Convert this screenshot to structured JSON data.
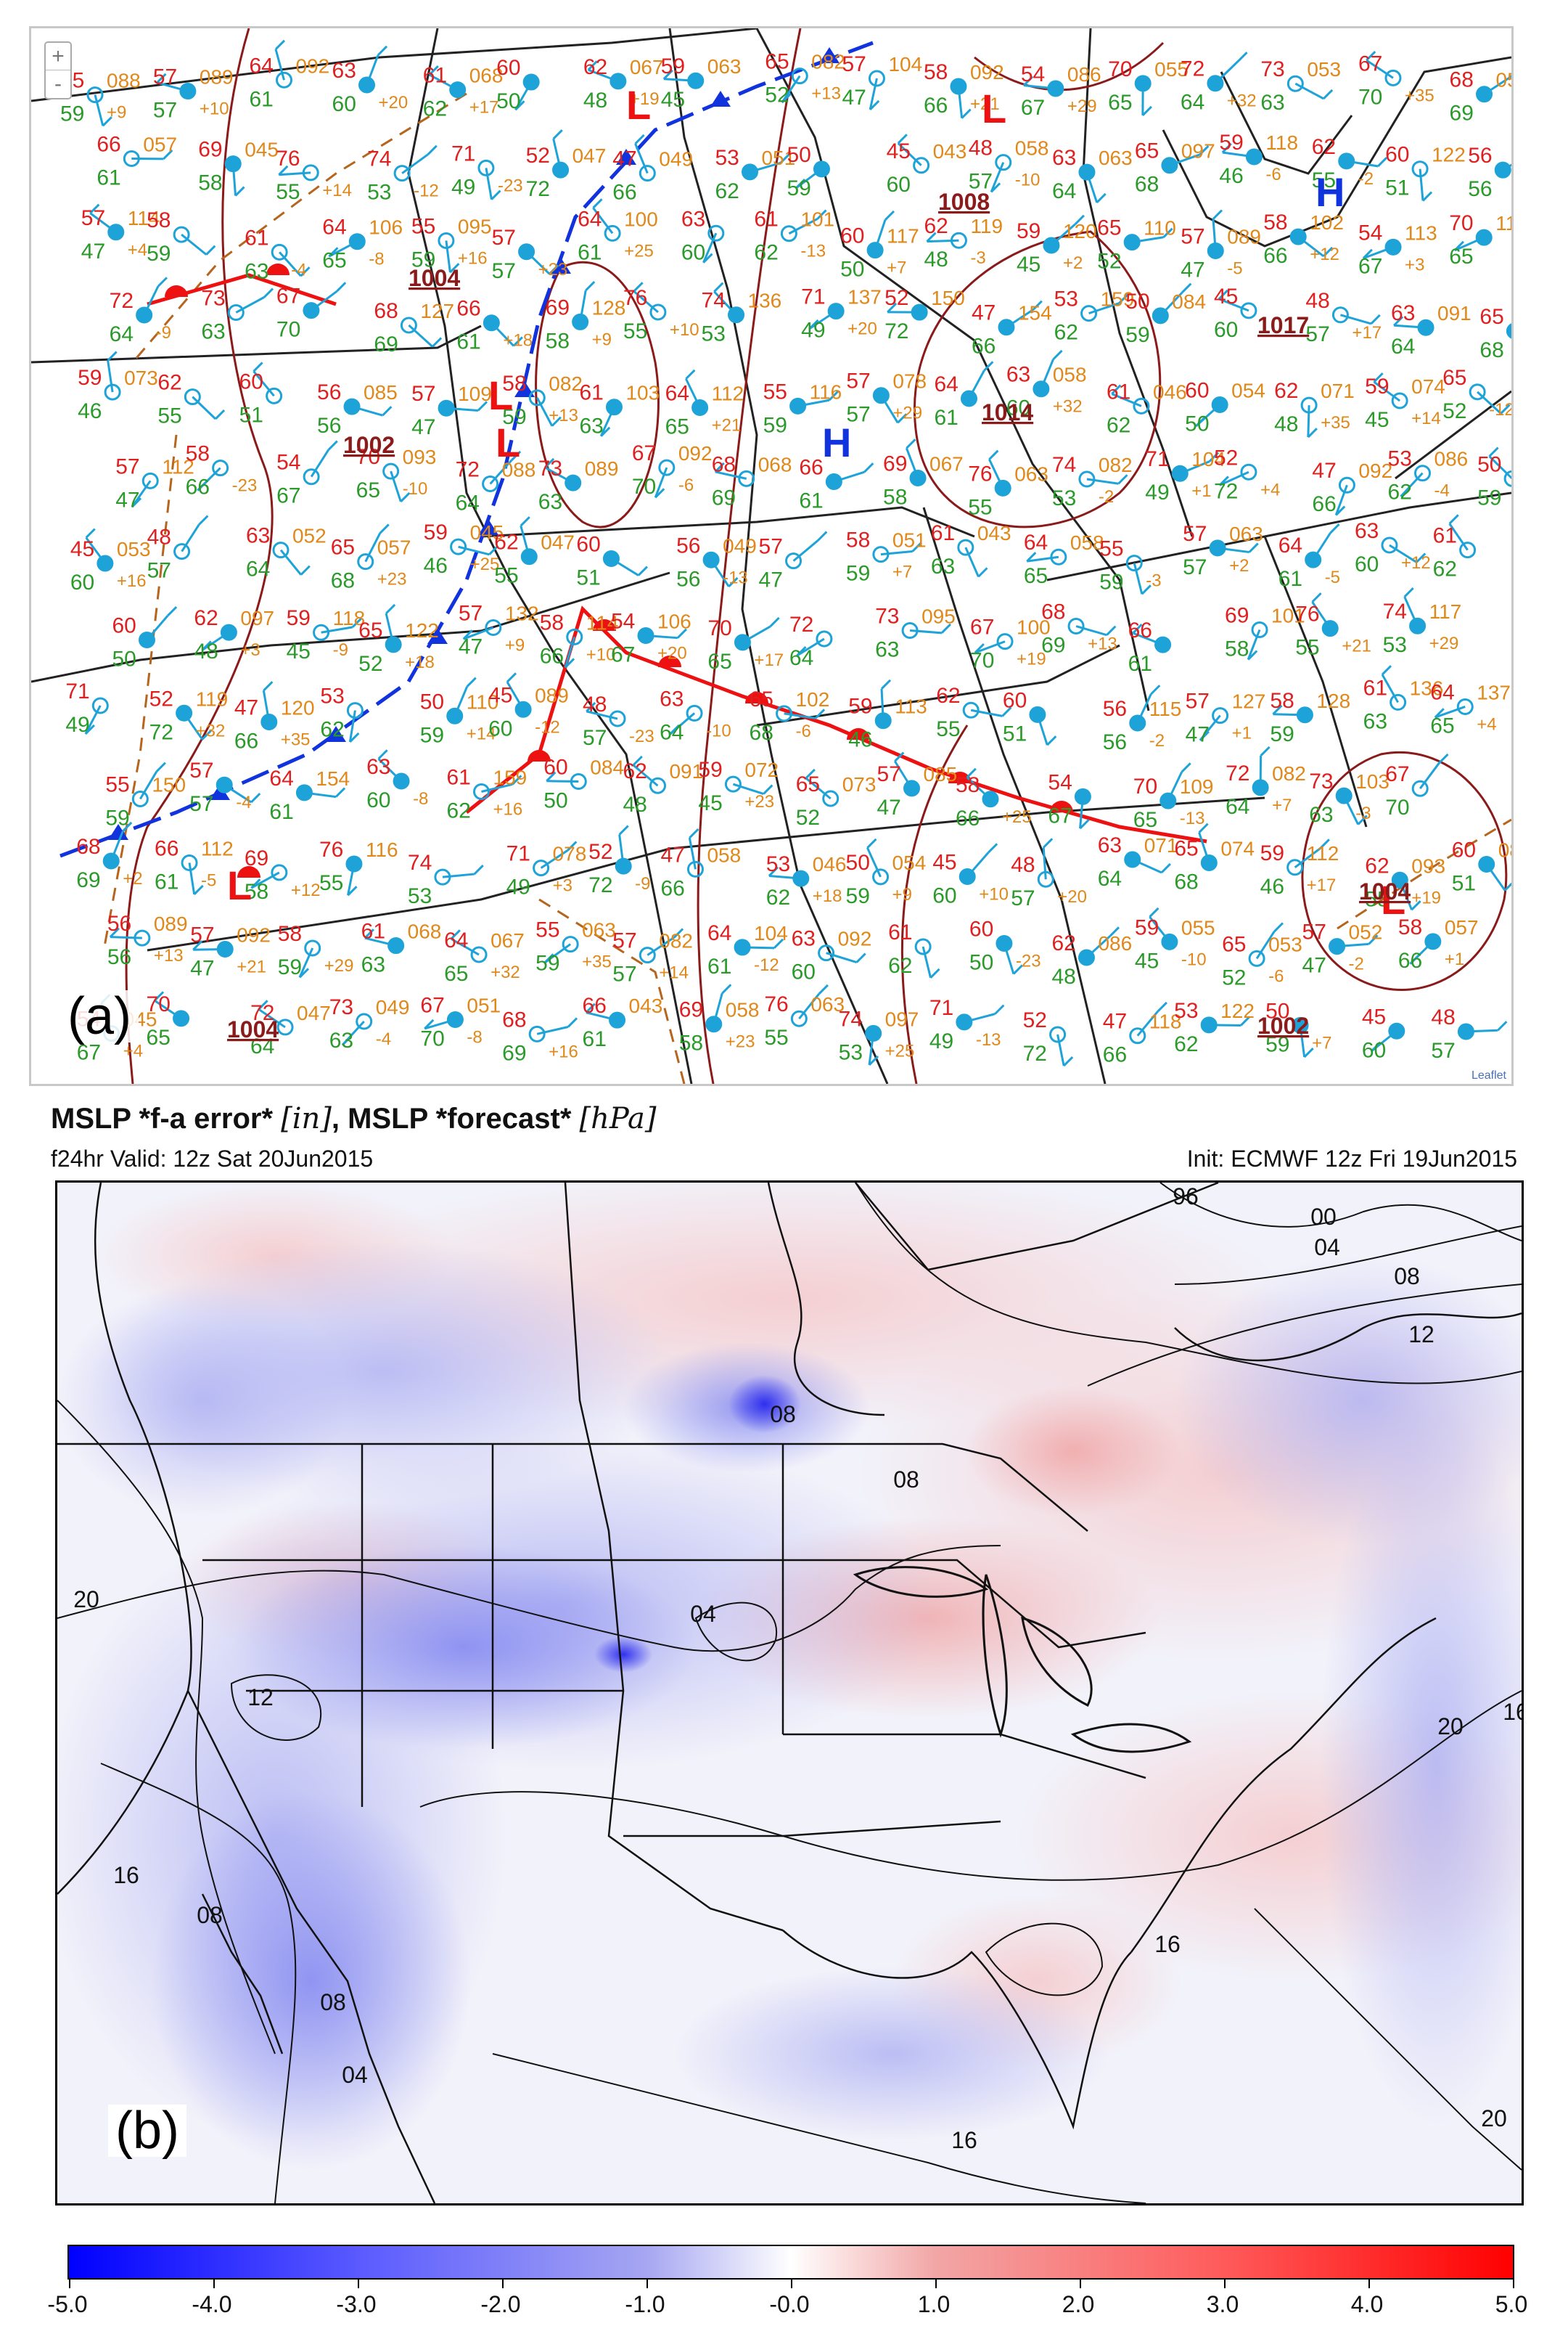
{
  "panel_a": {
    "label": "(a)",
    "zoom_in": "+",
    "zoom_out": "-",
    "attribution": "Leaflet",
    "pressure_centers": [
      {
        "type": "L",
        "value": ""
      },
      {
        "type": "L",
        "value": ""
      },
      {
        "type": "L",
        "value": "1004"
      },
      {
        "type": "L",
        "value": "1004"
      },
      {
        "type": "H",
        "value": "1014"
      },
      {
        "type": "H",
        "value": "1017"
      },
      {
        "type": "L",
        "value": "1008"
      },
      {
        "type": "L",
        "value": ""
      }
    ],
    "isobar_labels": [
      "1002",
      "1004",
      "1008",
      "1014",
      "1017",
      "1002",
      "1004",
      "1004"
    ],
    "station_temps": [
      "55",
      "57",
      "64",
      "63",
      "61",
      "60",
      "62",
      "59",
      "65",
      "57",
      "58",
      "54",
      "70",
      "72",
      "73",
      "67",
      "68",
      "66",
      "69",
      "76",
      "74",
      "71",
      "52",
      "47",
      "53",
      "50",
      "45",
      "48",
      "63",
      "65",
      "59",
      "62",
      "60",
      "56",
      "57",
      "58",
      "61",
      "64"
    ],
    "station_dews": [
      "59",
      "57",
      "61",
      "60",
      "62",
      "50",
      "48",
      "45",
      "52",
      "47",
      "66",
      "67",
      "65",
      "64",
      "63",
      "70",
      "69",
      "61",
      "58",
      "55",
      "53",
      "49",
      "72",
      "66",
      "62",
      "59",
      "60",
      "57",
      "64",
      "68",
      "46",
      "55",
      "51",
      "56",
      "47",
      "59",
      "63",
      "65"
    ],
    "station_pressures": [
      "088",
      "089",
      "092",
      "068",
      "067",
      "063",
      "082",
      "104",
      "092",
      "086",
      "055",
      "053",
      "052",
      "057",
      "045",
      "047",
      "049",
      "051",
      "043",
      "058",
      "063",
      "097",
      "118",
      "122",
      "132",
      "114",
      "106",
      "095",
      "100",
      "101",
      "117",
      "119",
      "120",
      "110",
      "089",
      "102",
      "113",
      "115",
      "127",
      "128",
      "136",
      "137",
      "150",
      "154",
      "159",
      "084",
      "091",
      "072",
      "073",
      "085",
      "109",
      "082",
      "103",
      "112",
      "116",
      "078",
      "058",
      "046",
      "054",
      "071",
      "074",
      "112",
      "093"
    ],
    "tendencies": [
      "+9",
      "+10",
      "+20",
      "+17",
      "+19",
      "+13",
      "+21",
      "+29",
      "+32",
      "+35",
      "+14",
      "-12",
      "-23",
      "-10",
      "-6",
      "-2",
      "+1",
      "+4",
      "-4",
      "-8",
      "+16",
      "+23",
      "+25",
      "-13",
      "+7",
      "-3",
      "+2",
      "-5",
      "+12",
      "+3",
      "-9",
      "+18"
    ]
  },
  "panel_b": {
    "title_main": "MSLP *f-a error* ",
    "title_unit1": "[in]",
    "title_mid": ", MSLP *forecast* ",
    "title_unit2": "[hPa]",
    "subtitle_left": "f24hr Valid: 12z Sat 20Jun2015",
    "subtitle_right": "Init: ECMWF 12z Fri 19Jun2015",
    "label": "(b)",
    "contour_labels": [
      "96",
      "00",
      "04",
      "08",
      "12",
      "08",
      "20",
      "12",
      "04",
      "08",
      "16",
      "08",
      "04",
      "08",
      "16",
      "16",
      "20",
      "16",
      "20"
    ]
  },
  "colorbar": {
    "ticks": [
      "-5.0",
      "-4.0",
      "-3.0",
      "-2.0",
      "-1.0",
      "-0.0",
      "1.0",
      "2.0",
      "3.0",
      "4.0",
      "5.0"
    ],
    "colors": {
      "min": "#0000ff",
      "mid": "#ffffff",
      "max": "#ff0000"
    }
  },
  "colors": {
    "cold_front": "#1133dd",
    "warm_front": "#ee1111",
    "isobar": "#8b1a1a",
    "temp_text": "#e02020",
    "dew_text": "#2a9a2a",
    "pressure_text": "#e0881a",
    "wind_barb": "#1ea3d8"
  }
}
